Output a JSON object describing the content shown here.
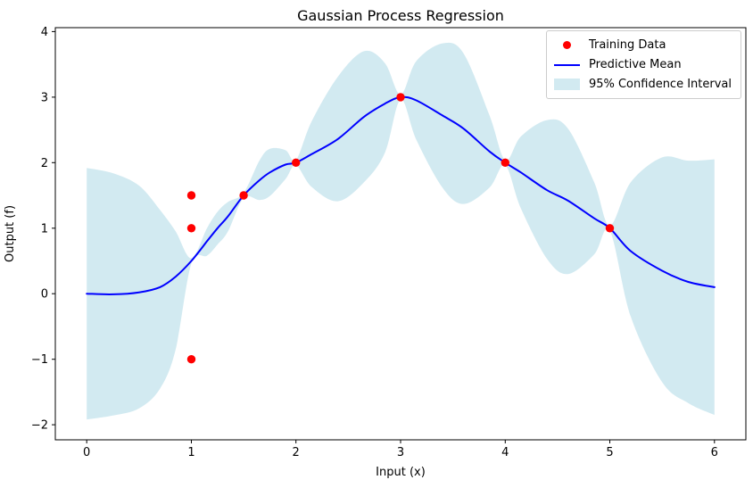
{
  "figure": {
    "title": "Gaussian Process Regression",
    "xlabel": "Input (x)",
    "ylabel": "Output (f)"
  },
  "legend": {
    "items": [
      {
        "label": "Training Data",
        "icon": "red-dot-marker",
        "color": "#ff0000"
      },
      {
        "label": "Predictive Mean",
        "icon": "blue-line-marker",
        "color": "#0000ff"
      },
      {
        "label": "95% Confidence Interval",
        "icon": "lightblue-patch",
        "color": "#add8e6",
        "alpha": 0.55
      }
    ]
  },
  "chart_data": {
    "type": "line",
    "title": "Gaussian Process Regression",
    "xlabel": "Input (x)",
    "ylabel": "Output (f)",
    "xlim": [
      -0.3,
      6.3
    ],
    "ylim": [
      -2.23,
      4.06
    ],
    "xticks": [
      0,
      1,
      2,
      3,
      4,
      5,
      6
    ],
    "xtick_labels": [
      "0",
      "1",
      "2",
      "3",
      "4",
      "5",
      "6"
    ],
    "yticks": [
      -2,
      -1,
      0,
      1,
      2,
      3,
      4
    ],
    "ytick_labels": [
      "−2",
      "−1",
      "0",
      "1",
      "2",
      "3",
      "4"
    ],
    "grid": false,
    "legend_position": "upper right",
    "background": "#ffffff",
    "series": [
      {
        "name": "Training Data",
        "type": "scatter",
        "color": "#ff0000",
        "marker_radius": 4.7,
        "x": [
          1.0,
          1.0,
          1.0,
          1.5,
          2.0,
          3.0,
          4.0,
          5.0
        ],
        "y": [
          1.5,
          1.0,
          -1.0,
          1.5,
          2.0,
          3.0,
          2.0,
          1.0
        ]
      },
      {
        "name": "Predictive Mean",
        "type": "line",
        "color": "#0000ff",
        "width": 2,
        "x": [
          0,
          0.25,
          0.5,
          0.7,
          0.85,
          1.0,
          1.15,
          1.25,
          1.35,
          1.5,
          1.65,
          1.75,
          1.9,
          2.0,
          2.15,
          2.4,
          2.65,
          2.85,
          3.0,
          3.15,
          3.4,
          3.6,
          3.85,
          4.0,
          4.15,
          4.4,
          4.6,
          4.85,
          5.0,
          5.2,
          5.5,
          5.75,
          6.0
        ],
        "y": [
          0.0,
          -0.01,
          0.02,
          0.1,
          0.26,
          0.5,
          0.8,
          1.0,
          1.18,
          1.5,
          1.73,
          1.85,
          1.97,
          2.0,
          2.13,
          2.36,
          2.7,
          2.9,
          3.0,
          2.95,
          2.72,
          2.52,
          2.17,
          2.0,
          1.85,
          1.58,
          1.42,
          1.15,
          1.0,
          0.65,
          0.35,
          0.18,
          0.1
        ]
      },
      {
        "name": "95% Confidence Interval",
        "type": "band",
        "color": "#add8e6",
        "alpha": 0.55,
        "x": [
          0,
          0.25,
          0.5,
          0.7,
          0.85,
          1.0,
          1.15,
          1.25,
          1.35,
          1.5,
          1.65,
          1.75,
          1.9,
          2.0,
          2.15,
          2.4,
          2.65,
          2.85,
          3.0,
          3.15,
          3.4,
          3.6,
          3.85,
          4.0,
          4.15,
          4.4,
          4.6,
          4.85,
          5.0,
          5.2,
          5.5,
          5.75,
          6.0
        ],
        "upper": [
          1.92,
          1.84,
          1.65,
          1.28,
          0.95,
          0.54,
          1.0,
          1.25,
          1.4,
          1.54,
          2.03,
          2.21,
          2.19,
          2.04,
          2.63,
          3.31,
          3.7,
          3.52,
          3.04,
          3.55,
          3.82,
          3.67,
          2.72,
          2.04,
          2.4,
          2.65,
          2.52,
          1.7,
          1.04,
          1.7,
          2.08,
          2.03,
          2.05
        ],
        "lower": [
          -1.92,
          -1.86,
          -1.75,
          -1.45,
          -0.85,
          0.46,
          0.58,
          0.75,
          0.95,
          1.46,
          1.43,
          1.49,
          1.75,
          1.96,
          1.63,
          1.41,
          1.7,
          2.15,
          2.96,
          2.35,
          1.62,
          1.37,
          1.62,
          1.96,
          1.3,
          0.53,
          0.3,
          0.6,
          0.96,
          -0.35,
          -1.35,
          -1.67,
          -1.85
        ]
      }
    ]
  }
}
